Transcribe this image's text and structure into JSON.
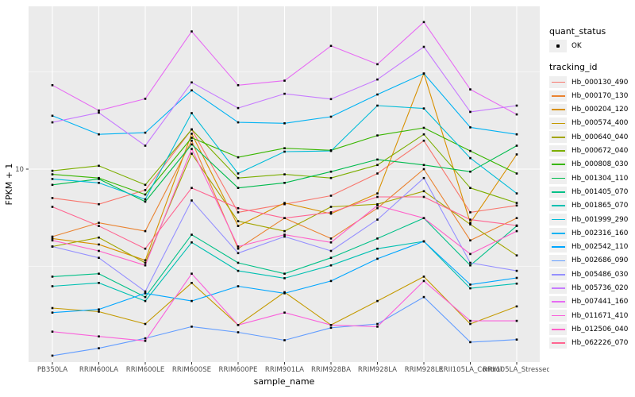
{
  "axes": {
    "y_title": "FPKM + 1",
    "x_title": "sample_name",
    "y_tick_labels": [
      "10"
    ]
  },
  "legend": {
    "quant_status_title": "quant_status",
    "quant_status_items": [
      "OK"
    ],
    "tracking_id_title": "tracking_id"
  },
  "chart_data": {
    "type": "line",
    "title": "",
    "xlabel": "sample_name",
    "ylabel": "FPKM + 1",
    "y_scale": "log10",
    "y_ticks": [
      10
    ],
    "y_minor_ticks": [
      3.162,
      31.62
    ],
    "y_range": [
      1.02,
      68
    ],
    "grid": true,
    "legend_position": "right",
    "panel_bg": "#ebebeb",
    "grid_color": "#ffffff",
    "point_color": "#000000",
    "quant_status": "OK",
    "x_categories": [
      "PB350LA",
      "RRIM600LA",
      "RRIM600LE",
      "RRIM600SE",
      "RRIM600PE",
      "RRIM901LA",
      "RRIM928BA",
      "RRIM928LA",
      "RRIM928LE",
      "RRII105LA_Control",
      "RRII105LA_Stressed"
    ],
    "series": [
      {
        "name": "Hb_000130_490",
        "color": "#F8766D",
        "values": [
          7.1,
          6.6,
          7.8,
          16.0,
          6.0,
          6.6,
          7.3,
          9.5,
          14.0,
          6.0,
          6.5
        ]
      },
      {
        "name": "Hb_000170_130",
        "color": "#EA8331",
        "values": [
          4.5,
          5.3,
          4.8,
          14.0,
          3.9,
          5.6,
          4.4,
          6.3,
          10.0,
          4.3,
          5.6
        ]
      },
      {
        "name": "Hb_000204_120",
        "color": "#D89000",
        "values": [
          4.4,
          4.1,
          3.4,
          15.2,
          5.1,
          6.7,
          5.9,
          7.5,
          31.0,
          5.3,
          11.9
        ]
      },
      {
        "name": "Hb_000574_400",
        "color": "#C49A00",
        "values": [
          1.93,
          1.85,
          1.6,
          2.6,
          1.58,
          2.33,
          1.58,
          2.1,
          2.8,
          1.6,
          1.97
        ]
      },
      {
        "name": "Hb_000640_040",
        "color": "#A3A500",
        "values": [
          4.0,
          4.45,
          3.3,
          12.0,
          5.4,
          4.8,
          6.4,
          6.6,
          7.7,
          5.2,
          3.6
        ]
      },
      {
        "name": "Hb_000672_040",
        "color": "#7CAE00",
        "values": [
          9.8,
          10.4,
          8.3,
          16.0,
          9.0,
          9.4,
          9.0,
          10.5,
          15.1,
          8.0,
          6.7
        ]
      },
      {
        "name": "Hb_000808_030",
        "color": "#39B600",
        "values": [
          9.4,
          9.0,
          7.4,
          14.5,
          11.5,
          12.8,
          12.5,
          14.9,
          16.3,
          12.4,
          9.5
        ]
      },
      {
        "name": "Hb_001304_110",
        "color": "#00BB4E",
        "values": [
          8.3,
          8.9,
          6.8,
          13.4,
          8.0,
          8.5,
          9.7,
          11.2,
          10.5,
          9.7,
          13.2
        ]
      },
      {
        "name": "Hb_001405_070",
        "color": "#00C087",
        "values": [
          2.8,
          2.9,
          2.2,
          4.6,
          3.3,
          2.9,
          3.5,
          4.4,
          5.6,
          3.2,
          5.1
        ]
      },
      {
        "name": "Hb_001865_070",
        "color": "#00C0B2",
        "values": [
          2.5,
          2.6,
          2.1,
          4.2,
          3.0,
          2.75,
          3.2,
          3.9,
          4.25,
          2.44,
          2.58
        ]
      },
      {
        "name": "Hb_001999_290",
        "color": "#00BCD8",
        "values": [
          8.9,
          8.5,
          7.0,
          19.4,
          9.5,
          12.3,
          12.4,
          21.2,
          20.5,
          11.4,
          7.5
        ]
      },
      {
        "name": "Hb_002316_160",
        "color": "#00B2F3",
        "values": [
          18.8,
          15.1,
          15.4,
          25.4,
          17.4,
          17.2,
          18.6,
          24.2,
          31.0,
          16.4,
          15.1
        ]
      },
      {
        "name": "Hb_002542_110",
        "color": "#00A6FF",
        "values": [
          1.83,
          1.9,
          2.3,
          2.1,
          2.5,
          2.3,
          2.66,
          3.46,
          4.25,
          2.55,
          2.76
        ]
      },
      {
        "name": "Hb_002686_090",
        "color": "#619CFF",
        "values": [
          1.1,
          1.2,
          1.35,
          1.55,
          1.45,
          1.32,
          1.53,
          1.6,
          2.2,
          1.29,
          1.33
        ]
      },
      {
        "name": "Hb_005486_030",
        "color": "#9590FF",
        "values": [
          4.0,
          3.5,
          2.35,
          6.9,
          3.7,
          4.5,
          3.8,
          5.5,
          9.0,
          3.3,
          3.0
        ]
      },
      {
        "name": "Hb_005736_020",
        "color": "#C77CFF",
        "values": [
          17.4,
          19.5,
          13.2,
          27.9,
          20.6,
          24.4,
          22.9,
          28.9,
          42.5,
          19.7,
          21.2
        ]
      },
      {
        "name": "Hb_007441_160",
        "color": "#E76BF3",
        "values": [
          27.0,
          20.0,
          23.0,
          51.0,
          27.0,
          28.5,
          43.0,
          34.6,
          57.0,
          25.7,
          19.1
        ]
      },
      {
        "name": "Hb_011671_410",
        "color": "#FA62DB",
        "values": [
          1.46,
          1.38,
          1.31,
          2.9,
          1.58,
          1.83,
          1.58,
          1.55,
          2.66,
          1.66,
          1.66
        ]
      },
      {
        "name": "Hb_012506_040",
        "color": "#FF61C9",
        "values": [
          4.3,
          3.8,
          3.2,
          12.7,
          4.0,
          4.6,
          4.2,
          6.5,
          5.6,
          3.66,
          4.8
        ]
      },
      {
        "name": "Hb_062226_070",
        "color": "#FF6591",
        "values": [
          6.4,
          5.1,
          3.9,
          8.0,
          6.3,
          5.6,
          6.0,
          7.2,
          7.2,
          5.5,
          5.13
        ]
      }
    ]
  }
}
